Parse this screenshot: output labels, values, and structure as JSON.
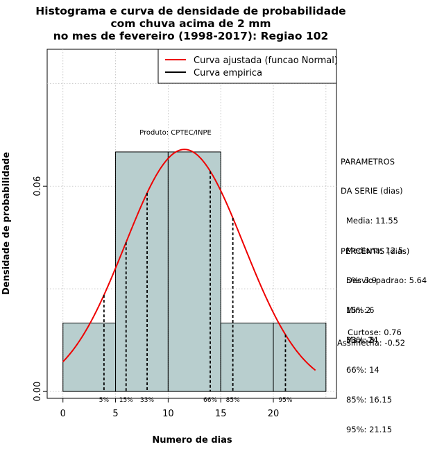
{
  "title_lines": [
    "Histograma e curva de densidade de probabilidade",
    "com chuva acima de 2 mm",
    "no mes de fevereiro (1998-2017): Regiao 102"
  ],
  "product_label": "Produto: CPTEC/INPE",
  "legend": {
    "fitted": "Curva ajustada (funcao Normal)",
    "empirical": "Curva empirica"
  },
  "parameters": {
    "heading_1": "PARAMETROS",
    "heading_2": "DA SERIE (dias)",
    "lines": [
      "Media: 11.55",
      "Mediana: 12.5",
      "Desvio padrao: 5.64",
      "Min: 2",
      "Max: 24"
    ]
  },
  "percentiles": {
    "heading": "PERCENTIS (dias)",
    "lines": [
      "5%: 3.9",
      "15%: 6",
      "33%: 8",
      "66%: 14",
      "85%: 16.15",
      "95%: 21.15"
    ]
  },
  "stats": {
    "kurtosis": "Curtose: 0.76",
    "skewness": "Assimetria: -0.52"
  },
  "colors": {
    "bar_fill": "#b8cece",
    "fitted_curve": "#ee0000",
    "empirical_curve": "#000000",
    "grid": "#bbbbbb"
  },
  "chart_data": {
    "type": "bar",
    "title": "Histograma e curva de densidade de probabilidade com chuva acima de 2 mm no mes de fevereiro (1998-2017): Regiao 102",
    "xlabel": "Numero de dias",
    "ylabel": "Densidade de probabilidade",
    "xlim": [
      -1.5,
      26
    ],
    "ylim": [
      -0.002,
      0.1
    ],
    "x_ticks": [
      0,
      5,
      10,
      15,
      20
    ],
    "y_ticks": [
      0.0,
      0.06
    ],
    "y_tick_labels": [
      "0.00",
      "0.06"
    ],
    "grid": true,
    "bins": [
      {
        "start": 0,
        "end": 5,
        "density": 0.02
      },
      {
        "start": 5,
        "end": 10,
        "density": 0.07
      },
      {
        "start": 10,
        "end": 15,
        "density": 0.07
      },
      {
        "start": 15,
        "end": 20,
        "density": 0.02
      },
      {
        "start": 20,
        "end": 25,
        "density": 0.02
      }
    ],
    "fitted_normal": {
      "mean": 11.55,
      "sd": 5.64,
      "x_range": [
        0,
        24
      ]
    },
    "percentile_lines": [
      {
        "label": "5%",
        "x": 3.9
      },
      {
        "label": "15%",
        "x": 6
      },
      {
        "label": "33%",
        "x": 8
      },
      {
        "label": "66%",
        "x": 14
      },
      {
        "label": "85%",
        "x": 16.15
      },
      {
        "label": "95%",
        "x": 21.15
      }
    ],
    "legend_position": "top-right"
  }
}
